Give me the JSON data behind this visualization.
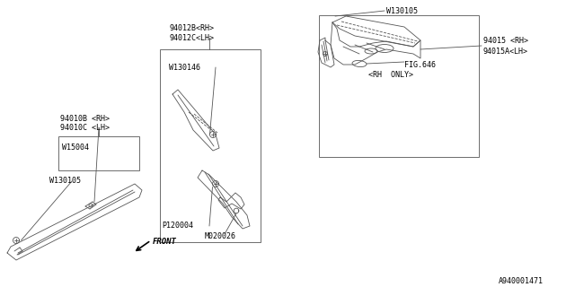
{
  "bg_color": "#ffffff",
  "fig_label": "A940001471",
  "labels": {
    "94012B_RH": "94012B<RH>",
    "94012C_LH": "94012C<LH>",
    "W130146": "W130146",
    "P120004": "P120004",
    "M020026": "M020026",
    "94010B_RH": "94010B <RH>",
    "94010C_LH": "94010C <LH>",
    "W15004": "W15004",
    "W130105_left": "W130105",
    "W130105_top": "W130105",
    "94015_RH": "94015 <RH>",
    "94015A_LH": "94015A<LH>",
    "FIG646": "FIG.646",
    "RH_ONLY": "<RH  ONLY>",
    "FRONT": "FRONT"
  },
  "font_size": 6.0,
  "lc": "#555555"
}
